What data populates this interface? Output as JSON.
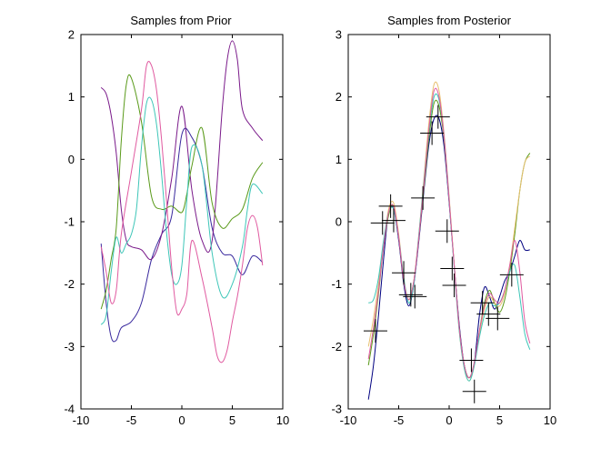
{
  "chart_data": [
    {
      "type": "line",
      "title": "Samples from Prior",
      "xlabel": "",
      "ylabel": "",
      "xlim": [
        -10,
        10
      ],
      "ylim": [
        -4,
        2
      ],
      "xticks": [
        -10,
        -5,
        0,
        5,
        10
      ],
      "yticks": [
        -4,
        -3,
        -2,
        -1,
        0,
        1,
        2
      ],
      "xtick_labels": [
        "-10",
        "-5",
        "0",
        "5",
        "10"
      ],
      "ytick_labels": [
        "-4",
        "-3",
        "-2",
        "-1",
        "0",
        "1",
        "2"
      ],
      "grid": false,
      "series": [
        {
          "color": "#3a2a9e",
          "x": [
            -8,
            -7.5,
            -7,
            -6.5,
            -6,
            -5,
            -4,
            -3,
            -2,
            -1,
            0,
            1,
            2,
            3,
            4,
            5,
            6,
            7,
            8
          ],
          "y": [
            -1.35,
            -2.3,
            -2.85,
            -2.9,
            -2.7,
            -2.6,
            -2.3,
            -1.6,
            -1.2,
            -0.9,
            0.4,
            0.35,
            -0.1,
            -1.1,
            -1.5,
            -1.55,
            -1.85,
            -1.55,
            -1.65
          ]
        },
        {
          "color": "#7a1a8a",
          "x": [
            -8,
            -7.5,
            -7,
            -6.5,
            -6,
            -5.5,
            -5,
            -4,
            -3,
            -2,
            -1,
            0,
            1,
            2,
            3,
            4,
            4.5,
            5,
            5.5,
            6,
            7,
            8
          ],
          "y": [
            1.15,
            1.05,
            0.7,
            0.1,
            -0.8,
            -1.3,
            -1.4,
            -1.45,
            -1.6,
            -1.2,
            -0.3,
            0.85,
            -0.5,
            -1.3,
            -1.3,
            0.8,
            1.6,
            1.9,
            1.6,
            0.8,
            0.5,
            0.3
          ]
        },
        {
          "color": "#5a9a1a",
          "x": [
            -8,
            -7.5,
            -7,
            -6.5,
            -6,
            -5.5,
            -5,
            -4,
            -3,
            -2,
            -1,
            0,
            0.5,
            1,
            2,
            3,
            4,
            5,
            6,
            7,
            8
          ],
          "y": [
            -2.4,
            -2.1,
            -1.6,
            -1.1,
            0.3,
            1.2,
            1.3,
            0.6,
            -0.6,
            -0.8,
            -0.75,
            -0.85,
            -0.55,
            -0.1,
            0.5,
            -0.7,
            -1.1,
            -0.95,
            -0.8,
            -0.3,
            -0.05
          ]
        },
        {
          "color": "#3ec6b8",
          "x": [
            -8,
            -7.5,
            -7,
            -6.5,
            -6,
            -5.5,
            -5,
            -4.5,
            -4,
            -3.5,
            -3,
            -2.5,
            -2,
            -1.5,
            -1,
            -0.5,
            0,
            0.5,
            1,
            2,
            3,
            4,
            5,
            6,
            6.5,
            7,
            8
          ],
          "y": [
            -2.65,
            -2.5,
            -1.8,
            -1.25,
            -1.5,
            -1.35,
            -1.2,
            -0.8,
            0.2,
            0.9,
            0.95,
            0.55,
            -0.25,
            -1.2,
            -1.85,
            -2.0,
            -1.7,
            -0.65,
            0.2,
            -0.1,
            -1.5,
            -2.2,
            -2.0,
            -1.4,
            -0.8,
            -0.4,
            -0.55
          ]
        },
        {
          "color": "#e05aa0",
          "x": [
            -8,
            -7.5,
            -7,
            -6.5,
            -6,
            -5,
            -4,
            -3.5,
            -3,
            -2.5,
            -2,
            -1.5,
            -1,
            -0.5,
            0,
            0.5,
            1,
            2,
            3,
            3.5,
            4,
            4.5,
            5,
            5.5,
            6,
            6.5,
            7,
            7.5,
            8
          ],
          "y": [
            -1.4,
            -1.8,
            -2.3,
            -2.1,
            -1.2,
            -0.2,
            0.8,
            1.5,
            1.5,
            1.1,
            0.3,
            -0.7,
            -1.75,
            -2.45,
            -2.4,
            -2.15,
            -1.3,
            -1.9,
            -2.7,
            -3.15,
            -3.25,
            -3.05,
            -2.6,
            -2.2,
            -1.7,
            -1.1,
            -0.9,
            -1.1,
            -1.7
          ]
        }
      ]
    },
    {
      "type": "line",
      "title": "Samples from Posterior",
      "xlabel": "",
      "ylabel": "",
      "xlim": [
        -10,
        10
      ],
      "ylim": [
        -3,
        3
      ],
      "xticks": [
        -10,
        -5,
        0,
        5,
        10
      ],
      "yticks": [
        -3,
        -2,
        -1,
        0,
        1,
        2,
        3
      ],
      "xtick_labels": [
        "-10",
        "-5",
        "0",
        "5",
        "10"
      ],
      "ytick_labels": [
        "-3",
        "-2",
        "-1",
        "0",
        "1",
        "2",
        "3"
      ],
      "grid": false,
      "series": [
        {
          "color": "#000080",
          "x": [
            -8,
            -7.5,
            -7,
            -6.5,
            -6,
            -5.5,
            -5,
            -4.5,
            -4,
            -3.5,
            -3,
            -2.5,
            -2,
            -1.5,
            -1,
            -0.5,
            0,
            0.5,
            1,
            1.5,
            2,
            2.5,
            3,
            3.5,
            4,
            4.5,
            5,
            5.5,
            6,
            6.5,
            7,
            7.5,
            8
          ],
          "y": [
            -2.85,
            -2.3,
            -1.5,
            -0.6,
            0.15,
            0.2,
            -0.3,
            -1.0,
            -1.35,
            -1.0,
            -0.3,
            0.5,
            1.25,
            1.65,
            1.65,
            1.2,
            0.3,
            -0.7,
            -1.65,
            -2.3,
            -2.5,
            -2.25,
            -1.5,
            -1.05,
            -1.2,
            -1.4,
            -1.2,
            -0.95,
            -0.8,
            -0.55,
            -0.3,
            -0.45,
            -0.45
          ]
        },
        {
          "color": "#5a9a1a",
          "x": [
            -8,
            -7.5,
            -7,
            -6.5,
            -6,
            -5.5,
            -5,
            -4.5,
            -4,
            -3.5,
            -3,
            -2.5,
            -2,
            -1.5,
            -1,
            -0.5,
            0,
            0.5,
            1,
            1.5,
            2,
            2.5,
            3,
            3.5,
            4,
            4.5,
            5,
            5.5,
            6,
            6.5,
            7,
            7.5,
            8
          ],
          "y": [
            -2.3,
            -1.8,
            -1.15,
            -0.4,
            0.1,
            0.25,
            -0.25,
            -0.95,
            -1.25,
            -0.95,
            -0.25,
            0.55,
            1.35,
            1.9,
            1.85,
            1.3,
            0.35,
            -0.7,
            -1.7,
            -2.3,
            -2.5,
            -2.25,
            -1.75,
            -1.3,
            -1.1,
            -1.3,
            -1.45,
            -1.25,
            -0.8,
            -0.2,
            0.5,
            0.95,
            1.1
          ]
        },
        {
          "color": "#e8c070",
          "x": [
            -8,
            -7.5,
            -7,
            -6.5,
            -6,
            -5.5,
            -5,
            -4.5,
            -4,
            -3.5,
            -3,
            -2.5,
            -2,
            -1.5,
            -1,
            -0.5,
            0,
            0.5,
            1,
            1.5,
            2,
            2.5,
            3,
            3.5,
            4,
            4.5,
            5,
            5.5,
            6,
            6.5,
            7,
            7.5,
            8
          ],
          "y": [
            -2.0,
            -1.55,
            -1.0,
            -0.35,
            0.2,
            0.3,
            -0.2,
            -0.9,
            -1.25,
            -0.95,
            -0.2,
            0.7,
            1.6,
            2.2,
            2.1,
            1.4,
            0.4,
            -0.7,
            -1.75,
            -2.35,
            -2.55,
            -2.3,
            -1.8,
            -1.4,
            -1.2,
            -1.3,
            -1.35,
            -1.15,
            -0.7,
            -0.1,
            0.5,
            0.95,
            1.05
          ]
        },
        {
          "color": "#3ec6b8",
          "x": [
            -8,
            -7.5,
            -7,
            -6.5,
            -6,
            -5.5,
            -5,
            -4.5,
            -4,
            -3.5,
            -3,
            -2.5,
            -2,
            -1.5,
            -1,
            -0.5,
            0,
            0.5,
            1,
            1.5,
            2,
            2.5,
            3,
            3.5,
            4,
            4.5,
            5,
            5.5,
            6,
            6.5,
            7,
            7.5,
            8
          ],
          "y": [
            -1.3,
            -1.25,
            -0.9,
            -0.3,
            0.15,
            0.2,
            -0.25,
            -0.9,
            -1.3,
            -1.0,
            -0.2,
            0.65,
            1.45,
            2.0,
            1.95,
            1.35,
            0.35,
            -0.75,
            -1.75,
            -2.35,
            -2.55,
            -2.3,
            -1.85,
            -1.5,
            -1.3,
            -1.35,
            -1.3,
            -1.1,
            -0.8,
            -0.7,
            -1.2,
            -1.8,
            -2.05
          ]
        },
        {
          "color": "#e05aa0",
          "x": [
            -8,
            -7.5,
            -7,
            -6.5,
            -6,
            -5.5,
            -5,
            -4.5,
            -4,
            -3.5,
            -3,
            -2.5,
            -2,
            -1.5,
            -1,
            -0.5,
            0,
            0.5,
            1,
            1.5,
            2,
            2.5,
            3,
            3.5,
            4,
            4.5,
            5,
            5.5,
            6,
            6.5,
            7,
            7.5,
            8
          ],
          "y": [
            -2.2,
            -1.7,
            -1.1,
            -0.4,
            0.15,
            0.25,
            -0.25,
            -0.95,
            -1.25,
            -0.95,
            -0.25,
            0.6,
            1.5,
            2.1,
            2.0,
            1.35,
            0.35,
            -0.7,
            -1.7,
            -2.3,
            -2.5,
            -2.25,
            -1.75,
            -1.35,
            -1.15,
            -1.25,
            -1.3,
            -1.1,
            -0.7,
            -0.3,
            -0.8,
            -1.6,
            -1.95
          ]
        }
      ],
      "observations": {
        "x": [
          -7.3,
          -6.6,
          -5.8,
          -5.5,
          -4.5,
          -3.8,
          -3.4,
          -2.6,
          -1.7,
          -1.1,
          -0.2,
          0.3,
          0.5,
          2.2,
          2.5,
          3.3,
          3.9,
          4.8,
          6.2
        ],
        "y": [
          -1.75,
          -0.02,
          0.25,
          0.02,
          -0.82,
          -1.17,
          -1.2,
          0.38,
          1.42,
          1.68,
          -0.15,
          -0.75,
          -1.02,
          -2.22,
          -2.72,
          -1.3,
          -1.48,
          -1.55,
          -0.85
        ]
      }
    }
  ]
}
